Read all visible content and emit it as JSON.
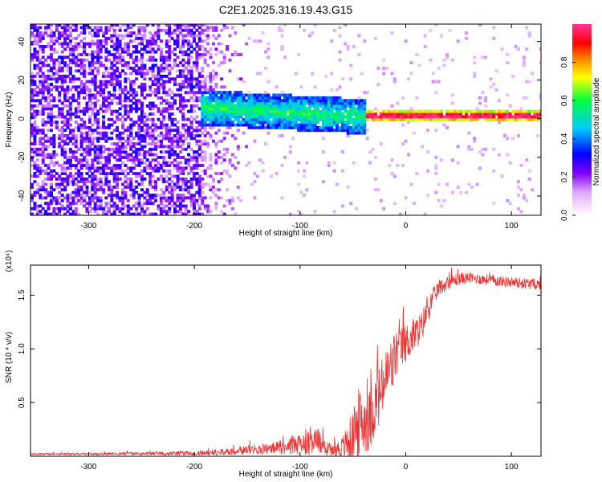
{
  "page": {
    "title": "C2E1.2025.316.19.43.G15"
  },
  "chart_data": [
    {
      "type": "heatmap",
      "xlabel": "Height of straight line (km)",
      "ylabel": "Frequency (Hz)",
      "xlim": [
        -355,
        128
      ],
      "ylim": [
        -50,
        49
      ],
      "xticks": [
        -300,
        -200,
        -100,
        0,
        100
      ],
      "yticks": [
        -40,
        -20,
        0,
        20,
        40
      ],
      "colorbar": {
        "label": "Normalized spectral amplitude",
        "range": [
          0,
          1
        ],
        "ticks": [
          0.0,
          0.2,
          0.4,
          0.6,
          0.8
        ],
        "tick_labels": [
          "0.0",
          "0.2",
          "0.4",
          "0.6",
          "0.8"
        ],
        "colors": [
          "#ffffff",
          "#e1a8ff",
          "#8000ff",
          "#0000ff",
          "#00c8ff",
          "#00ff40",
          "#ffff00",
          "#ff8000",
          "#ff0000",
          "#ff3399"
        ]
      },
      "description_regions": [
        {
          "x_range": [
            -355,
            -190
          ],
          "frequency_range": [
            -50,
            49
          ],
          "amplitude": 0.1
        },
        {
          "x_range": [
            -190,
            -40
          ],
          "frequency_center": 5,
          "frequency_halfwidth": 10,
          "amplitude": 0.35
        },
        {
          "x_range": [
            -40,
            128
          ],
          "frequency_center": 1,
          "frequency_halfwidth": 3,
          "amplitude": 0.9
        }
      ]
    },
    {
      "type": "line",
      "xlabel": "Height of straight line (km)",
      "ylabel": "SNR (10 * v/v)",
      "y_multiplier_label": "(x10⁴)",
      "xlim": [
        -355,
        128
      ],
      "ylim": [
        0,
        1.78
      ],
      "xticks": [
        -300,
        -200,
        -100,
        0,
        100
      ],
      "yticks": [
        0.5,
        1.0,
        1.5
      ],
      "ytick_labels": [
        "0.5",
        "1.0",
        "1.5"
      ],
      "series": [
        {
          "color": "#ee3333",
          "x": [
            -355,
            -300,
            -250,
            -200,
            -170,
            -150,
            -120,
            -100,
            -90,
            -80,
            -75,
            -70,
            -60,
            -50,
            -45,
            -40,
            -35,
            -30,
            -25,
            -20,
            -15,
            -12,
            -10,
            -5,
            0,
            5,
            10,
            15,
            20,
            25,
            30,
            40,
            50,
            60,
            80,
            100,
            128
          ],
          "mean": [
            0.02,
            0.02,
            0.025,
            0.03,
            0.04,
            0.06,
            0.08,
            0.12,
            0.15,
            0.14,
            0.08,
            0.06,
            0.08,
            0.18,
            0.28,
            0.33,
            0.32,
            0.45,
            0.55,
            0.7,
            0.8,
            0.85,
            0.95,
            1.0,
            1.05,
            1.1,
            1.15,
            1.2,
            1.35,
            1.45,
            1.55,
            1.62,
            1.65,
            1.66,
            1.64,
            1.62,
            1.6
          ],
          "spread": [
            0.01,
            0.01,
            0.015,
            0.02,
            0.03,
            0.04,
            0.06,
            0.1,
            0.14,
            0.12,
            0.08,
            0.06,
            0.1,
            0.25,
            0.35,
            0.3,
            0.28,
            0.3,
            0.3,
            0.28,
            0.3,
            0.28,
            0.25,
            0.2,
            0.18,
            0.18,
            0.15,
            0.15,
            0.12,
            0.1,
            0.08,
            0.06,
            0.06,
            0.05,
            0.05,
            0.05,
            0.05
          ]
        }
      ]
    }
  ]
}
